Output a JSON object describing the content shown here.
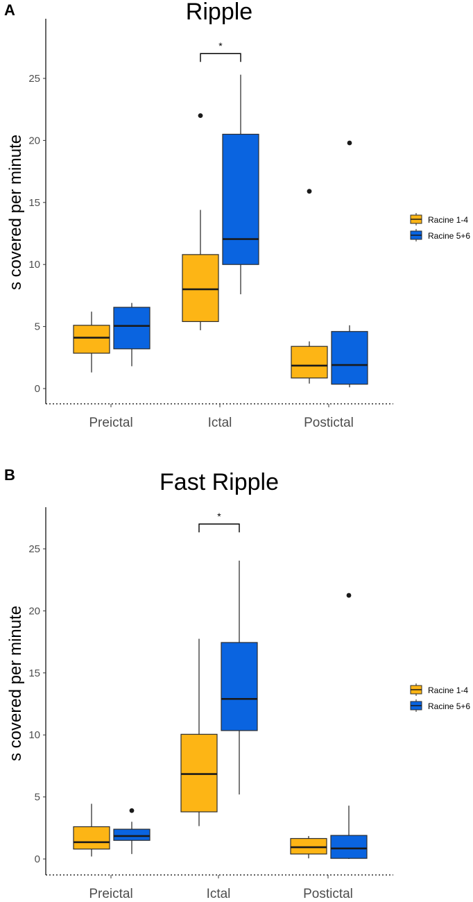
{
  "chart_data": [
    {
      "panel": "A",
      "type": "box",
      "title": "Ripple",
      "xlabel": "",
      "ylabel": "s covered per minute",
      "ylim": [
        -1.3,
        28.8
      ],
      "yticks": [
        0,
        5,
        10,
        15,
        20,
        25
      ],
      "categories": [
        "Preictal",
        "Ictal",
        "Postictal"
      ],
      "series": [
        {
          "name": "Racine 1-4",
          "color": "#FDB515",
          "boxes": [
            {
              "category": "Preictal",
              "min": 1.3,
              "q1": 2.85,
              "median": 4.1,
              "q3": 5.1,
              "max": 6.2,
              "outliers": []
            },
            {
              "category": "Ictal",
              "min": 4.7,
              "q1": 5.4,
              "median": 8.0,
              "q3": 10.8,
              "max": 14.4,
              "outliers": [
                22.0
              ]
            },
            {
              "category": "Postictal",
              "min": 0.4,
              "q1": 0.85,
              "median": 1.85,
              "q3": 3.4,
              "max": 3.8,
              "outliers": [
                15.9
              ]
            }
          ]
        },
        {
          "name": "Racine 5+6",
          "color": "#0A64E0",
          "boxes": [
            {
              "category": "Preictal",
              "min": 1.8,
              "q1": 3.2,
              "median": 5.05,
              "q3": 6.55,
              "max": 6.9,
              "outliers": []
            },
            {
              "category": "Ictal",
              "min": 7.6,
              "q1": 10.0,
              "median": 12.05,
              "q3": 20.5,
              "max": 25.3,
              "outliers": []
            },
            {
              "category": "Postictal",
              "min": 0.1,
              "q1": 0.35,
              "median": 1.9,
              "q3": 4.6,
              "max": 5.1,
              "outliers": [
                19.8
              ]
            }
          ]
        }
      ],
      "significance": [
        {
          "category": "Ictal",
          "label": "*",
          "y": 27.0
        }
      ],
      "legend": {
        "position": "right",
        "entries": [
          "Racine 1-4",
          "Racine 5+6"
        ]
      }
    },
    {
      "panel": "B",
      "type": "box",
      "title": "Fast Ripple",
      "xlabel": "",
      "ylabel": "s covered per minute",
      "ylim": [
        -1.3,
        28.8
      ],
      "yticks": [
        0,
        5,
        10,
        15,
        20,
        25
      ],
      "categories": [
        "Preictal",
        "Ictal",
        "Postictal"
      ],
      "series": [
        {
          "name": "Racine 1-4",
          "color": "#FDB515",
          "boxes": [
            {
              "category": "Preictal",
              "min": 0.2,
              "q1": 0.8,
              "median": 1.35,
              "q3": 2.6,
              "max": 4.45,
              "outliers": []
            },
            {
              "category": "Ictal",
              "min": 2.65,
              "q1": 3.8,
              "median": 6.85,
              "q3": 10.05,
              "max": 17.75,
              "outliers": []
            },
            {
              "category": "Postictal",
              "min": 0.05,
              "q1": 0.4,
              "median": 0.95,
              "q3": 1.65,
              "max": 1.85,
              "outliers": []
            }
          ]
        },
        {
          "name": "Racine 5+6",
          "color": "#0A64E0",
          "boxes": [
            {
              "category": "Preictal",
              "min": 0.4,
              "q1": 1.5,
              "median": 1.85,
              "q3": 2.4,
              "max": 3.0,
              "outliers": [
                3.9
              ]
            },
            {
              "category": "Ictal",
              "min": 5.2,
              "q1": 10.35,
              "median": 12.9,
              "q3": 17.45,
              "max": 24.05,
              "outliers": []
            },
            {
              "category": "Postictal",
              "min": 0.0,
              "q1": 0.05,
              "median": 0.85,
              "q3": 1.9,
              "max": 4.3,
              "outliers": [
                21.25
              ]
            }
          ]
        }
      ],
      "significance": [
        {
          "category": "Ictal",
          "label": "*",
          "y": 27.0
        }
      ],
      "legend": {
        "position": "right",
        "entries": [
          "Racine 1-4",
          "Racine 5+6"
        ]
      }
    }
  ]
}
